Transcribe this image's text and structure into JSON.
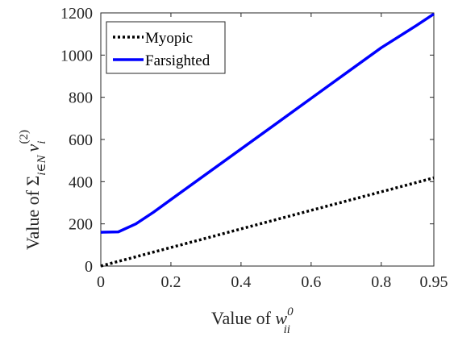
{
  "chart_data": {
    "type": "line",
    "x": [
      0,
      0.05,
      0.1,
      0.15,
      0.2,
      0.3,
      0.4,
      0.5,
      0.6,
      0.7,
      0.8,
      0.9,
      0.95
    ],
    "series": [
      {
        "name": "Myopic",
        "color": "#000000",
        "style": "dotted",
        "values": [
          0,
          22,
          44,
          66,
          88,
          132,
          176,
          220,
          264,
          308,
          352,
          396,
          418
        ]
      },
      {
        "name": "Farsighted",
        "color": "#0000ff",
        "style": "solid",
        "values": [
          160,
          162,
          200,
          255,
          315,
          435,
          555,
          675,
          795,
          915,
          1035,
          1140,
          1195
        ]
      }
    ],
    "xlim": [
      0,
      0.95
    ],
    "ylim": [
      0,
      1200
    ],
    "x_ticks": [
      0,
      0.2,
      0.4,
      0.6,
      0.8,
      0.95
    ],
    "x_tick_labels": [
      "0",
      "0.2",
      "0.4",
      "0.6",
      "0.8",
      "0.95"
    ],
    "y_ticks": [
      0,
      200,
      400,
      600,
      800,
      1000,
      1200
    ],
    "y_tick_labels": [
      "0",
      "200",
      "400",
      "600",
      "800",
      "1000",
      "1200"
    ],
    "xlabel": {
      "prefix": "Value of ",
      "symbol": "w",
      "superscript": "0",
      "subscript": "ii"
    },
    "ylabel": {
      "prefix": "Value of  ",
      "symbol": "Σ",
      "subscript": "i∈N",
      "var": "v",
      "var_sub": "i",
      "var_sup": "(2)"
    },
    "legend_position": "top-left",
    "grid": false
  }
}
